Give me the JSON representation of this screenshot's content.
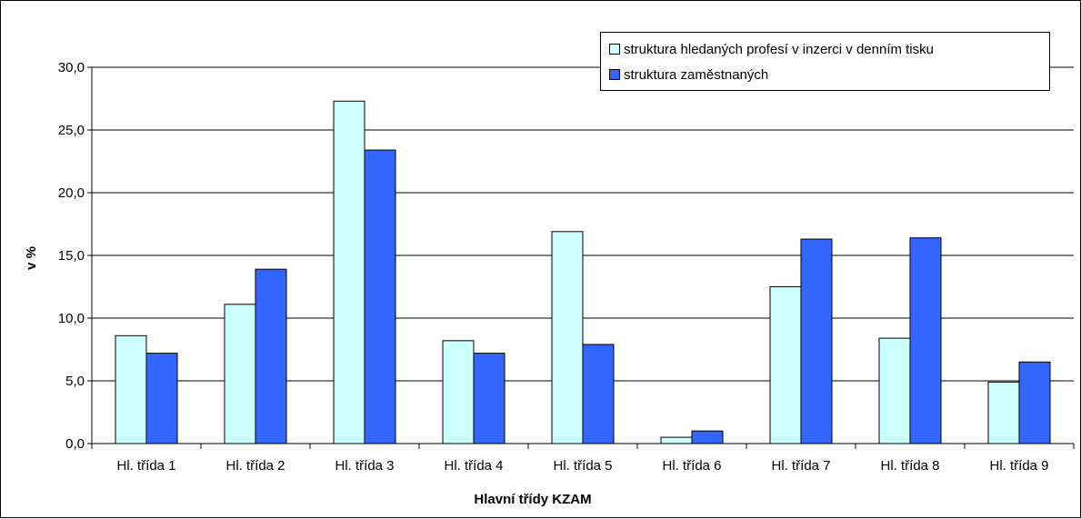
{
  "chart_data": {
    "type": "bar",
    "title": "",
    "xlabel": "Hlavní třídy KZAM",
    "ylabel": "v %",
    "ylim": [
      0,
      30
    ],
    "yticks": [
      "0,0",
      "5,0",
      "10,0",
      "15,0",
      "20,0",
      "25,0",
      "30,0"
    ],
    "ytick_values": [
      0,
      5,
      10,
      15,
      20,
      25,
      30
    ],
    "grid": true,
    "legend_position": "top-right",
    "categories": [
      "Hl. třída 1",
      "Hl. třída 2",
      "Hl. třída 3",
      "Hl. třída 4",
      "Hl. třída 5",
      "Hl. třída 6",
      "Hl. třída 7",
      "Hl. třída 8",
      "Hl. třída 9"
    ],
    "series": [
      {
        "name": "struktura hledaných profesí v inzerci v denním tisku",
        "color": "#ccffff",
        "values": [
          8.6,
          11.1,
          27.3,
          8.2,
          16.9,
          0.5,
          12.5,
          8.4,
          4.9
        ]
      },
      {
        "name": "struktura zaměstnaných",
        "color": "#3366ff",
        "values": [
          7.2,
          13.9,
          23.4,
          7.2,
          7.9,
          1.0,
          16.3,
          16.4,
          6.5
        ]
      }
    ]
  }
}
